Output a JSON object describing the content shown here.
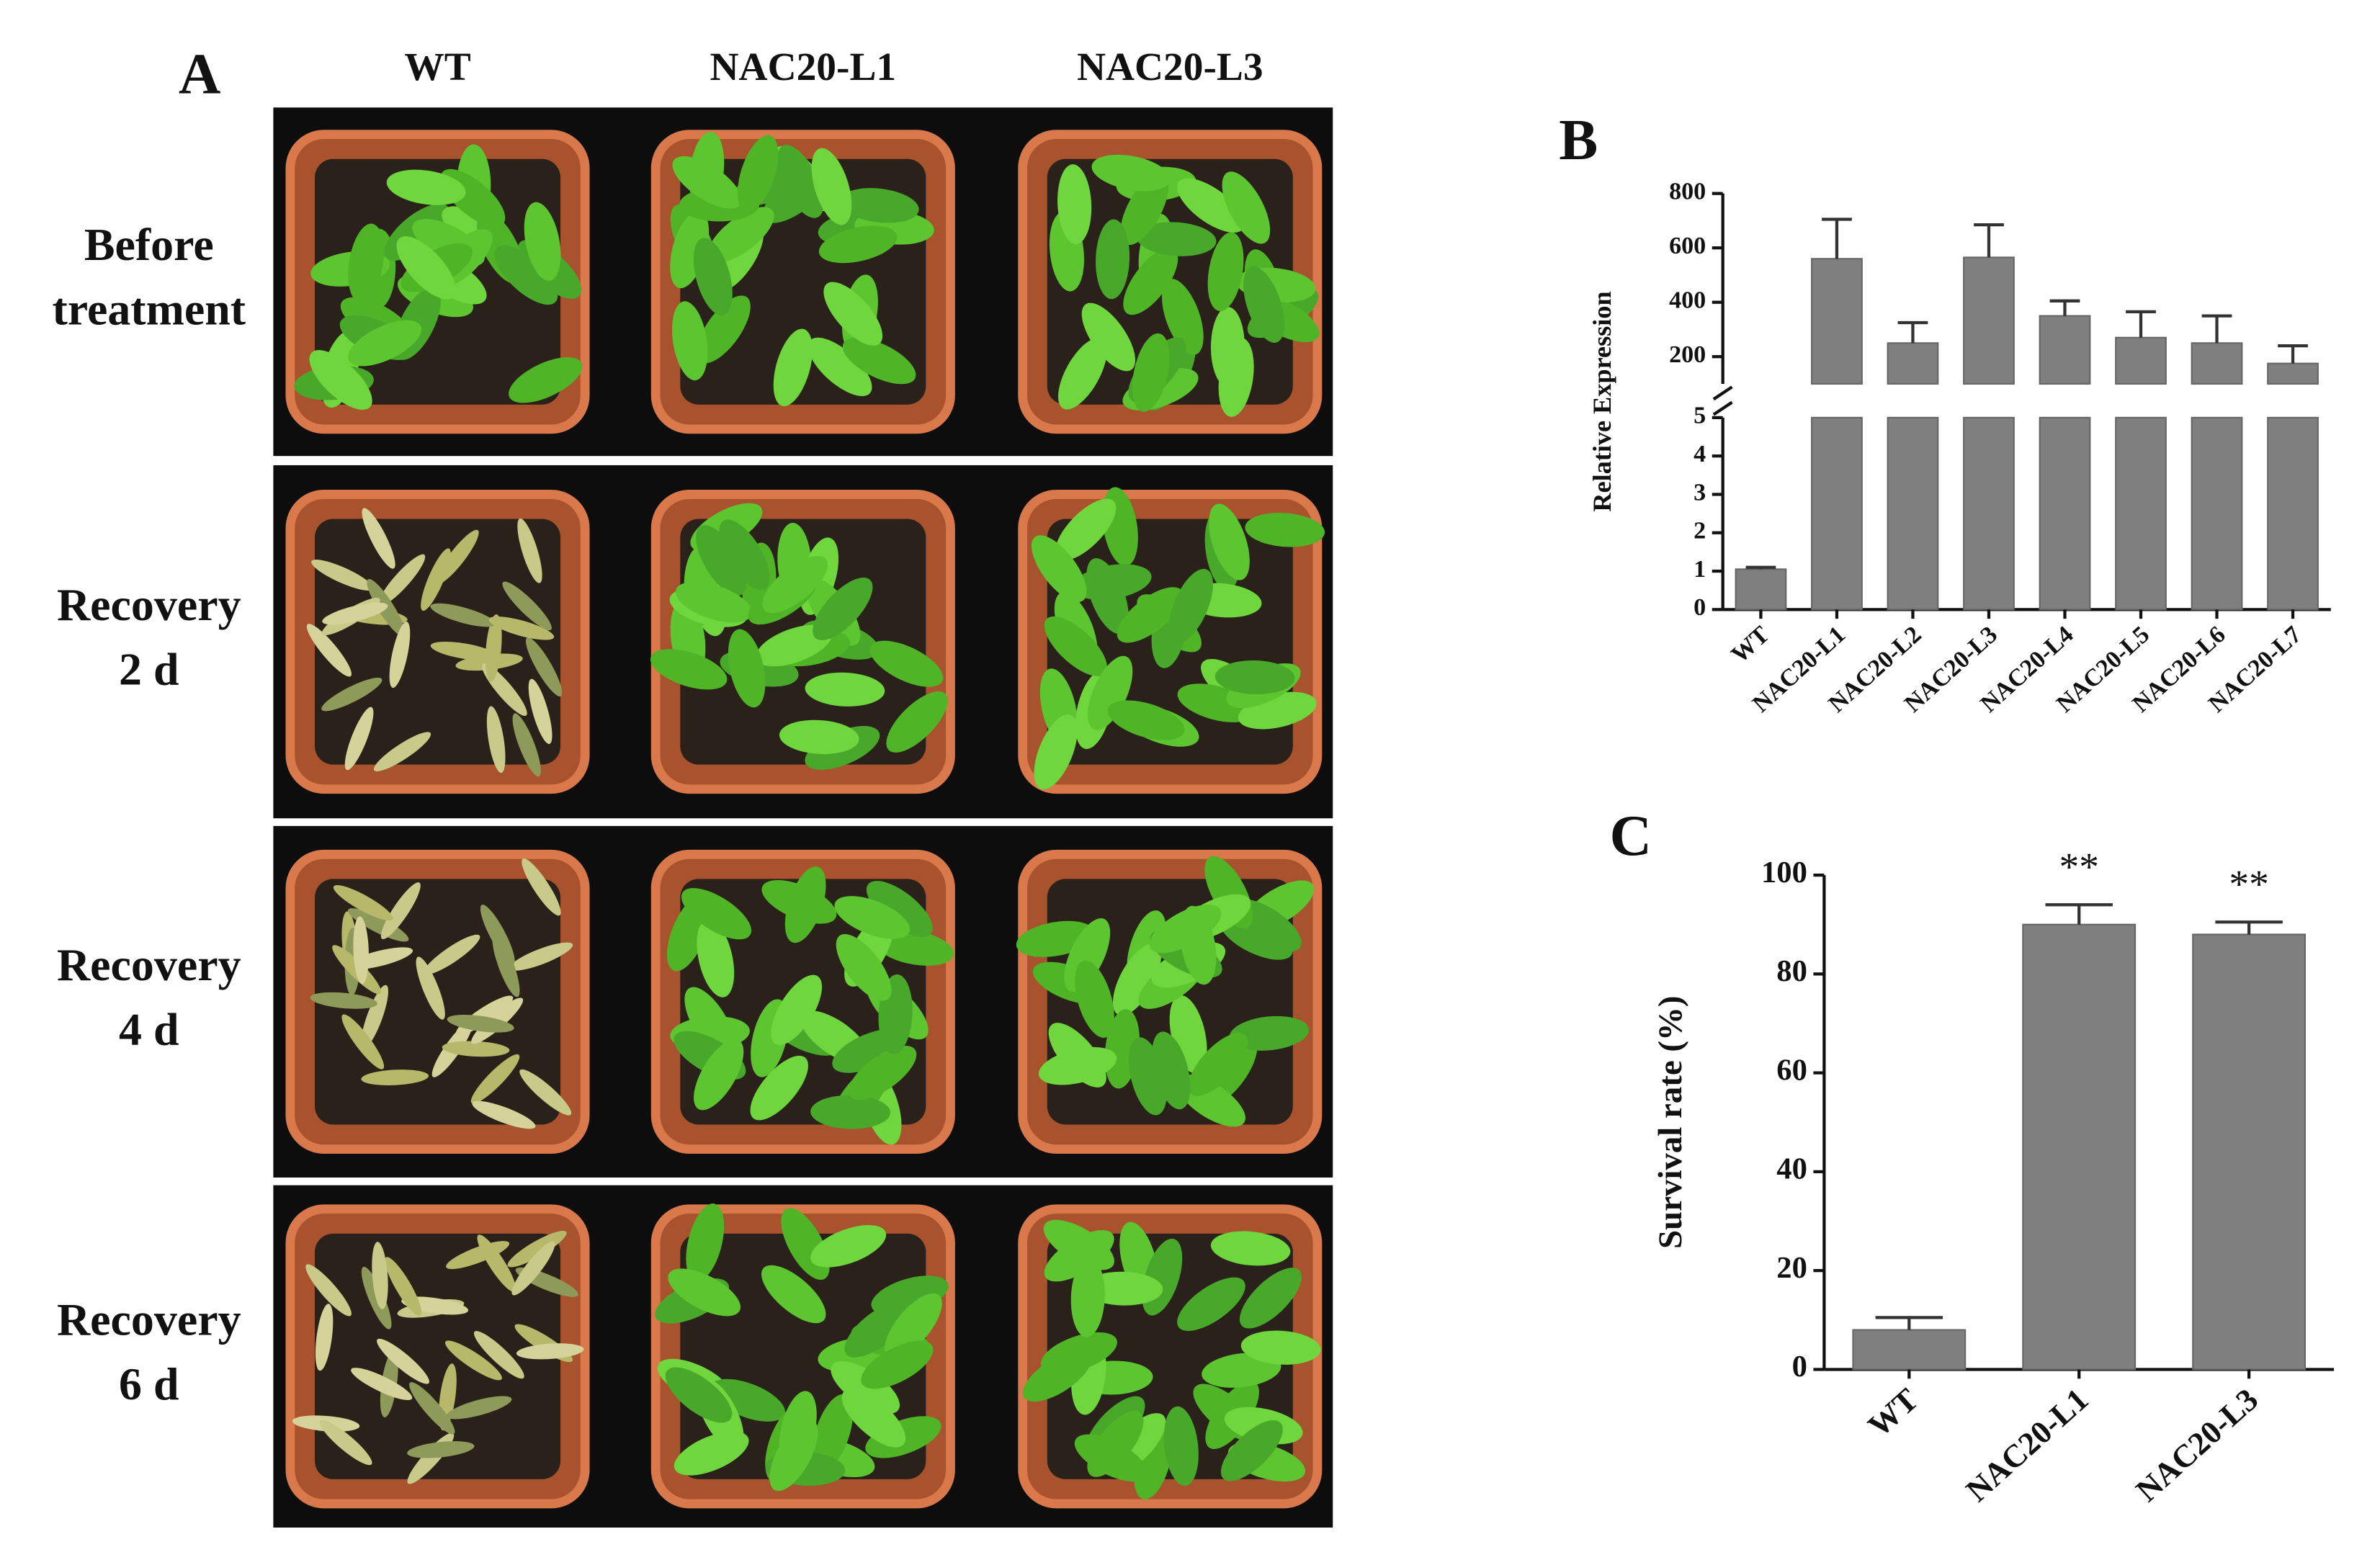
{
  "panel_a": {
    "label": "A",
    "columns": [
      "WT",
      "NAC20-L1",
      "NAC20-L3"
    ],
    "rows": [
      [
        "Before",
        "treatment"
      ],
      [
        "Recovery",
        "2 d"
      ],
      [
        "Recovery",
        "4 d"
      ],
      [
        "Recovery",
        "6 d"
      ]
    ]
  },
  "chart_data": [
    {
      "type": "bar",
      "panel_label": "B",
      "y_label": "Relative Expression",
      "categories": [
        "WT",
        "NAC20-L1",
        "NAC20-L2",
        "NAC20-L3",
        "NAC20-L4",
        "NAC20-L5",
        "NAC20-L6",
        "NAC20-L7"
      ],
      "values": [
        1.05,
        560,
        250,
        565,
        350,
        270,
        250,
        175
      ],
      "errors": [
        0.05,
        145,
        75,
        120,
        55,
        95,
        100,
        65
      ],
      "color": "#7f7f7f",
      "ylim": [
        0,
        800
      ],
      "ybreak": [
        5,
        100
      ],
      "yticks": [
        0,
        1,
        2,
        3,
        4,
        5,
        200,
        400,
        600,
        800
      ]
    },
    {
      "type": "bar",
      "panel_label": "C",
      "y_label": "Survival rate (%)",
      "categories": [
        "WT",
        "NAC20-L1",
        "NAC20-L3"
      ],
      "values": [
        8,
        90,
        88
      ],
      "errors": [
        2.5,
        4,
        2.5
      ],
      "value_annotations": [
        null,
        "**",
        "**"
      ],
      "color": "#7f7f7f",
      "ylim": [
        0,
        100
      ],
      "yticks": [
        0,
        20,
        40,
        60,
        80,
        100
      ]
    }
  ]
}
